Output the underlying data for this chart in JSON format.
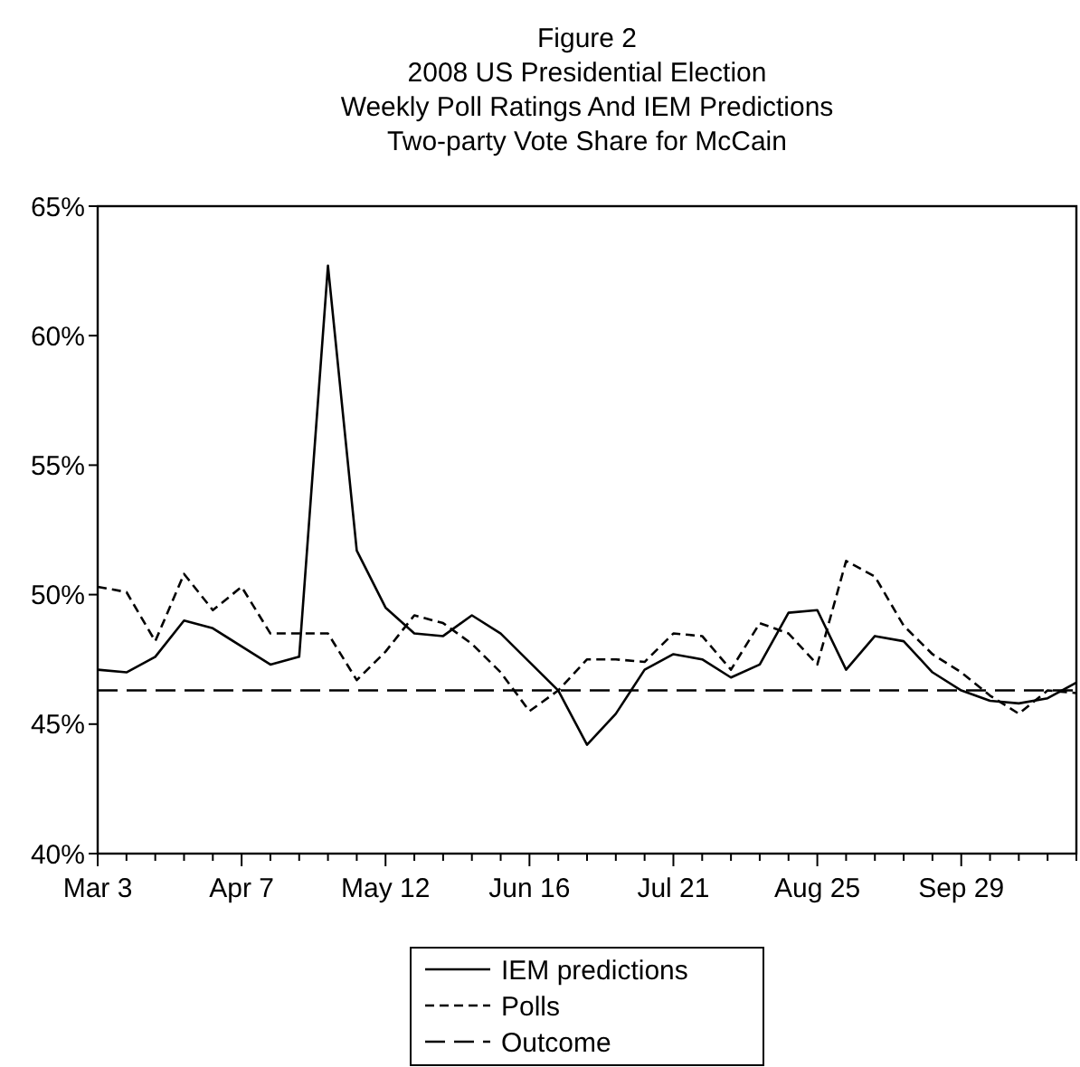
{
  "chart_data": {
    "type": "line",
    "title": "Figure 2\n2008 US Presidential Election\nWeekly Poll Ratings And IEM Predictions\nTwo-party Vote Share for McCain",
    "x": [
      "2008-03-03",
      "2008-03-10",
      "2008-03-17",
      "2008-03-24",
      "2008-03-31",
      "2008-04-07",
      "2008-04-14",
      "2008-04-21",
      "2008-04-28",
      "2008-05-05",
      "2008-05-12",
      "2008-05-19",
      "2008-05-26",
      "2008-06-02",
      "2008-06-09",
      "2008-06-16",
      "2008-06-23",
      "2008-06-30",
      "2008-07-07",
      "2008-07-14",
      "2008-07-21",
      "2008-07-28",
      "2008-08-04",
      "2008-08-11",
      "2008-08-18",
      "2008-08-25",
      "2008-09-01",
      "2008-09-08",
      "2008-09-15",
      "2008-09-22",
      "2008-09-29",
      "2008-10-06",
      "2008-10-13",
      "2008-10-20",
      "2008-10-27"
    ],
    "series": [
      {
        "name": "IEM predictions",
        "color": "#000000",
        "line_style": "solid",
        "values": [
          47.1,
          47.0,
          47.6,
          49.0,
          48.7,
          48.0,
          47.3,
          47.6,
          62.7,
          51.7,
          49.5,
          48.5,
          48.4,
          49.2,
          48.5,
          47.4,
          46.3,
          44.2,
          45.4,
          47.1,
          47.7,
          47.5,
          46.8,
          47.3,
          49.3,
          49.4,
          47.1,
          48.4,
          48.2,
          47.0,
          46.3,
          45.9,
          45.8,
          46.0,
          46.6
        ]
      },
      {
        "name": "Polls",
        "color": "#000000",
        "line_style": "dashed",
        "values": [
          50.3,
          50.1,
          48.2,
          50.8,
          49.4,
          50.3,
          48.5,
          48.5,
          48.5,
          46.7,
          47.8,
          49.2,
          48.9,
          48.1,
          47.0,
          45.5,
          46.3,
          47.5,
          47.5,
          47.4,
          48.5,
          48.4,
          47.1,
          48.9,
          48.5,
          47.3,
          51.3,
          50.7,
          48.8,
          47.7,
          47.0,
          46.1,
          45.4,
          46.3,
          46.2
        ]
      }
    ],
    "ref_lines": [
      {
        "axis": "y",
        "value": 46.3,
        "label": "Outcome",
        "color": "#000000",
        "line_style": "dashed"
      }
    ],
    "xlim": [
      "2008-03-03",
      "2008-10-27"
    ],
    "xticks": [
      {
        "value": "2008-03-03",
        "label": "Mar 3"
      },
      {
        "value": "2008-03-10",
        "label": null
      },
      {
        "value": "2008-03-17",
        "label": null
      },
      {
        "value": "2008-03-24",
        "label": null
      },
      {
        "value": "2008-03-31",
        "label": null
      },
      {
        "value": "2008-04-07",
        "label": "Apr 7"
      },
      {
        "value": "2008-04-14",
        "label": null
      },
      {
        "value": "2008-04-21",
        "label": null
      },
      {
        "value": "2008-04-28",
        "label": null
      },
      {
        "value": "2008-05-05",
        "label": null
      },
      {
        "value": "2008-05-12",
        "label": "May 12"
      },
      {
        "value": "2008-05-19",
        "label": null
      },
      {
        "value": "2008-05-26",
        "label": null
      },
      {
        "value": "2008-06-02",
        "label": null
      },
      {
        "value": "2008-06-09",
        "label": null
      },
      {
        "value": "2008-06-16",
        "label": "Jun 16"
      },
      {
        "value": "2008-06-23",
        "label": null
      },
      {
        "value": "2008-06-30",
        "label": null
      },
      {
        "value": "2008-07-07",
        "label": null
      },
      {
        "value": "2008-07-14",
        "label": null
      },
      {
        "value": "2008-07-21",
        "label": "Jul 21"
      },
      {
        "value": "2008-07-28",
        "label": null
      },
      {
        "value": "2008-08-04",
        "label": null
      },
      {
        "value": "2008-08-11",
        "label": null
      },
      {
        "value": "2008-08-18",
        "label": null
      },
      {
        "value": "2008-08-25",
        "label": "Aug 25"
      },
      {
        "value": "2008-09-01",
        "label": null
      },
      {
        "value": "2008-09-08",
        "label": null
      },
      {
        "value": "2008-09-15",
        "label": null
      },
      {
        "value": "2008-09-22",
        "label": null
      },
      {
        "value": "2008-09-29",
        "label": "Sep 29"
      },
      {
        "value": "2008-10-06",
        "label": null
      },
      {
        "value": "2008-10-13",
        "label": null
      },
      {
        "value": "2008-10-20",
        "label": null
      },
      {
        "value": "2008-10-27",
        "label": null
      }
    ],
    "ylim": [
      40,
      65
    ],
    "yticks": [
      {
        "value": 40,
        "label": "40%"
      },
      {
        "value": 45,
        "label": "45%"
      },
      {
        "value": 50,
        "label": "50%"
      },
      {
        "value": 55,
        "label": "55%"
      },
      {
        "value": 60,
        "label": "60%"
      },
      {
        "value": 65,
        "label": "65%"
      }
    ],
    "grid": false,
    "legend": "bottom",
    "marker": "none"
  }
}
